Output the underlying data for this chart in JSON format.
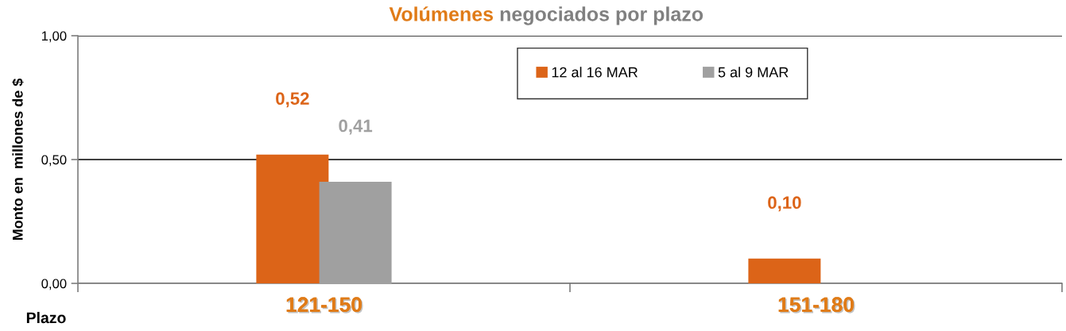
{
  "chart_data": {
    "type": "bar",
    "title": "Volúmenes negociados por plazo",
    "ylabel": "Monto en  millones de $",
    "xlabel": "Plazo",
    "categories": [
      "121-150",
      "151-180"
    ],
    "series": [
      {
        "name": "12 al 16 MAR",
        "color": "#dc6418",
        "values": [
          0.52,
          0.1
        ],
        "value_labels": [
          "0,52",
          "0,10"
        ]
      },
      {
        "name": "5 al 9 MAR",
        "color": "#a0a0a0",
        "values": [
          0.41,
          null
        ],
        "value_labels": [
          "0,41",
          null
        ]
      }
    ],
    "ylim": [
      0,
      1
    ],
    "yticks": [
      {
        "value": 0,
        "label": "0,00"
      },
      {
        "value": 0.5,
        "label": "0,50"
      },
      {
        "value": 1,
        "label": "1,00"
      }
    ],
    "grid": "y",
    "legend": "top"
  }
}
